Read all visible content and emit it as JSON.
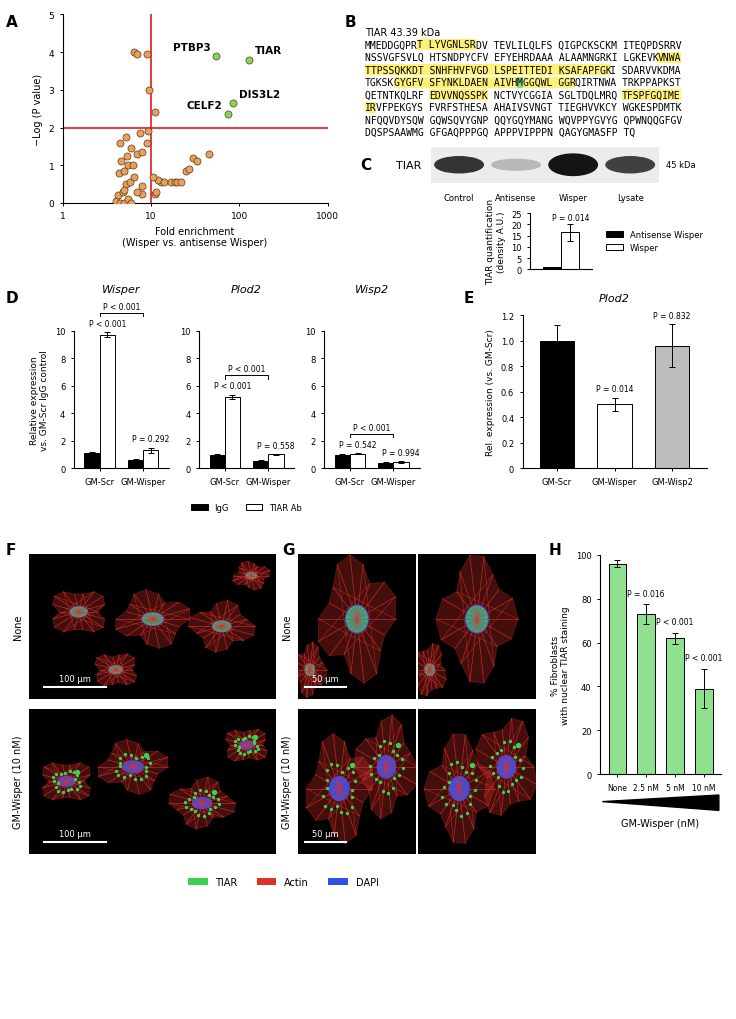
{
  "chart_data": [
    {
      "type": "scatter",
      "xlabel": "Fold enrichment\n(Wisper vs. antisense Wisper)",
      "ylabel": "−Log (P value)",
      "log": "x",
      "xlim": [
        1,
        1000
      ],
      "xticks": [
        1,
        10,
        100,
        1000
      ],
      "ylim": [
        0,
        5
      ],
      "yticks": [
        0,
        1,
        2,
        3,
        4,
        5
      ],
      "reference_lines": {
        "x": 10,
        "y": 2,
        "color": "#e41a1c"
      },
      "series": [
        {
          "color": "#e8a05c",
          "x": [
            4,
            4.5,
            5,
            5.5,
            6,
            4.2,
            4.8,
            5.2,
            5.8,
            6.5,
            4.3,
            5,
            5.5,
            6.2,
            4.6,
            5.3,
            7,
            8,
            6,
            4.5,
            9,
            5.2,
            7.5,
            9.2,
            11,
            11.5,
            13,
            12,
            14,
            17,
            19,
            20,
            22,
            10.5,
            25,
            27,
            30,
            33,
            45,
            11,
            6.5,
            7,
            9,
            9.5,
            5,
            8,
            7,
            8
          ],
          "values": [
            0.05,
            0,
            0,
            0.1,
            0,
            0.2,
            0.3,
            0.5,
            0.55,
            0.7,
            0.8,
            0.85,
            1.0,
            1.0,
            1.1,
            1.25,
            1.3,
            1.35,
            1.45,
            1.6,
            1.6,
            1.75,
            1.85,
            1.9,
            0.25,
            0.3,
            0.55,
            0.6,
            0.55,
            0.55,
            0.55,
            0.55,
            0.55,
            0.7,
            0.85,
            0.9,
            1.2,
            1.1,
            1.3,
            2.4,
            4.0,
            3.95,
            3.95,
            3.0,
            0.35,
            0.25,
            0.3,
            0.45
          ]
        },
        {
          "color": "#7ed957",
          "x": [
            55,
            130,
            85,
            75
          ],
          "values": [
            3.9,
            3.8,
            2.65,
            2.35
          ],
          "labels": [
            "PTBP3",
            "TIAR",
            "DIS3L2",
            "CELF2"
          ]
        }
      ]
    },
    {
      "type": "bar",
      "categories": [
        null
      ],
      "series": [
        {
          "name": "Antisense Wisper",
          "color": "#000000",
          "values": [
            1.0
          ],
          "errors": [
            0.2
          ]
        },
        {
          "name": "Wisper",
          "color": "#ffffff",
          "values": [
            16.5
          ],
          "errors": [
            3.7
          ]
        }
      ],
      "ylabel": "TIAR quantification\n(density A.U.)",
      "ylim": [
        0,
        25
      ],
      "yticks": [
        0,
        5,
        10,
        15,
        20,
        25
      ],
      "annotations": [
        {
          "text": "P = 0.014"
        }
      ],
      "legend": "right",
      "tick_labels": "y"
    },
    {
      "type": "bar",
      "title": "Wisper",
      "categories": [
        "GM-Scr",
        "GM-Wisper"
      ],
      "series": [
        {
          "name": "IgG",
          "color": "#000000",
          "values": [
            1.1,
            0.6
          ],
          "errors": [
            0.1,
            0.05
          ]
        },
        {
          "name": "TIAR Ab",
          "color": "#ffffff",
          "values": [
            9.7,
            1.3
          ],
          "errors": [
            0.2,
            0.2
          ]
        }
      ],
      "ylabel": "Relative expression\nvs. GM-Scr IgG control",
      "ylim": [
        0,
        10
      ],
      "yticks": [
        0,
        2,
        4,
        6,
        8,
        10
      ],
      "annotations": [
        {
          "category": "GM-Scr",
          "text": "P < 0.001"
        },
        {
          "category": "GM-Wisper",
          "text": "P = 0.292"
        }
      ],
      "bracket": {
        "text": "P < 0.001",
        "between": [
          "GM-Scr",
          "GM-Wisper"
        ]
      }
    },
    {
      "type": "bar",
      "title": "Plod2",
      "categories": [
        "GM-Scr",
        "GM-Wisper"
      ],
      "series": [
        {
          "name": "IgG",
          "color": "#000000",
          "values": [
            0.95,
            0.55
          ],
          "errors": [
            0.05,
            0.03
          ]
        },
        {
          "name": "TIAR Ab",
          "color": "#ffffff",
          "values": [
            5.2,
            1.0
          ],
          "errors": [
            0.15,
            0.05
          ]
        }
      ],
      "ylim": [
        0,
        10
      ],
      "yticks": [
        0,
        2,
        4,
        6,
        8,
        10
      ],
      "annotations": [
        {
          "category": "GM-Scr",
          "text": "P < 0.001"
        },
        {
          "category": "GM-Wisper",
          "text": "P = 0.558"
        }
      ],
      "bracket": {
        "text": "P < 0.001",
        "between": [
          "GM-Scr",
          "GM-Wisper"
        ]
      },
      "legend": "bottom"
    },
    {
      "type": "bar",
      "title": "Wisp2",
      "categories": [
        "GM-Scr",
        "GM-Wisper"
      ],
      "series": [
        {
          "name": "IgG",
          "color": "#000000",
          "values": [
            0.95,
            0.4
          ],
          "errors": [
            0.05,
            0.03
          ]
        },
        {
          "name": "TIAR Ab",
          "color": "#ffffff",
          "values": [
            1.05,
            0.45
          ],
          "errors": [
            0.05,
            0.04
          ]
        }
      ],
      "ylim": [
        0,
        10
      ],
      "yticks": [
        0,
        2,
        4,
        6,
        8,
        10
      ],
      "annotations": [
        {
          "category": "GM-Scr",
          "text": "P = 0.542"
        },
        {
          "category": "GM-Wisper",
          "text": "P = 0.994"
        }
      ],
      "bracket": {
        "text": "P < 0.001",
        "between": [
          "GM-Scr",
          "GM-Wisper"
        ]
      }
    },
    {
      "type": "bar",
      "title": "Plod2",
      "categories": [
        "GM-Scr",
        "GM-Wisper",
        "GM-Wisp2"
      ],
      "values": [
        1.0,
        0.5,
        0.96
      ],
      "errors": [
        0.12,
        0.05,
        0.17
      ],
      "colors": [
        "#000000",
        "#ffffff",
        "#bdbdbd"
      ],
      "ylabel": "Rel. expression (vs. GM-Scr)",
      "ylim": [
        0,
        1.2
      ],
      "yticks": [
        0,
        0.2,
        0.4,
        0.6,
        0.8,
        {
          "value": 1,
          "label": "1.0"
        },
        1.2
      ],
      "annotations": [
        {
          "category": "GM-Wisper",
          "text": "P = 0.014"
        },
        {
          "category": "GM-Wisp2",
          "text": "P = 0.832"
        }
      ]
    },
    {
      "type": "bar",
      "categories": [
        "None",
        "2.5 nM",
        "5 nM",
        "10 nM"
      ],
      "values": [
        96,
        73,
        62,
        39
      ],
      "errors": [
        1.5,
        4.5,
        2.5,
        9
      ],
      "color": "#8fe08f",
      "ylabel": "% Fibroblasts\nwith nuclear TIAR staining",
      "xlabel": "GM-Wisper (nM)",
      "ylim": [
        0,
        100
      ],
      "yticks": [
        0,
        20,
        40,
        60,
        80,
        100
      ],
      "annotations": [
        {
          "category": "2.5 nM",
          "text": "P = 0.016"
        },
        {
          "category": "5 nM",
          "text": "P < 0.001"
        },
        {
          "category": "10 nM",
          "text": "P < 0.001"
        }
      ]
    }
  ],
  "panel_letters": [
    "A",
    "B",
    "C",
    "D",
    "E",
    "F",
    "G",
    "H"
  ],
  "sequence": {
    "title": "TIAR 43.39 kDa",
    "rows": [
      [
        {
          "text": "MMEDDGQPR",
          "highlight": null
        },
        {
          "text": "T LYVGNLSR",
          "highlight": "#fff176"
        },
        {
          "text": "DV TEVLILQLFS QIGPCKSCKM ITEQPDSRRV",
          "highlight": null
        }
      ],
      [
        {
          "text": "NSSVGFSVLQ HTSNDPYCFV EFYEHRDAAA ALAAMNGRKI LGKEVK",
          "highlight": null
        },
        {
          "text": "VNWA",
          "highlight": "#fff176"
        }
      ],
      [
        {
          "text": "TTPSSQKKDT SNHFHVFVGD LSPEITTEDI KSAFAPFGK",
          "highlight": "#fff176"
        },
        {
          "text": "I SDARVVKDMA",
          "highlight": null
        }
      ],
      [
        {
          "text": "TGKSK",
          "highlight": null
        },
        {
          "text": "GYGFV SFYNKLDAEN AIVH",
          "highlight": "#fff176"
        },
        {
          "text": "M",
          "highlight": "#7ee07e"
        },
        {
          "text": "GGQWL GGR",
          "highlight": "#fff176"
        },
        {
          "text": "QIRTNWA TRKPPAPKST",
          "highlight": null
        }
      ],
      [
        {
          "text": "QETNTKQLRF ",
          "highlight": null
        },
        {
          "text": "EDVVNQSSPK",
          "highlight": "#fff176"
        },
        {
          "text": " NCTVYCGGIA SGLTDQLMRQ ",
          "highlight": null
        },
        {
          "text": "TFSPFGQIME",
          "highlight": "#fff176"
        }
      ],
      [
        {
          "text": "IR",
          "highlight": "#fff176"
        },
        {
          "text": "VFPEKGYS FVRFSTHESA AHAIVSVNGT TIEGHVVKCY WGKESPDMTK",
          "highlight": null
        }
      ],
      [
        {
          "text": "NFQQVDYSQW GQWSQVYGNP QQYGQYMANG WQVPPYGVYG QPWNQQGFGV",
          "highlight": null
        }
      ],
      [
        {
          "text": "DQSPSAAWMG GFGAQPPPGQ APPPVIPPPN QAGYGMASFP TQ",
          "highlight": null
        }
      ]
    ]
  },
  "blot": {
    "protein": "TIAR",
    "size": "45 kDa",
    "lanes": [
      "Control",
      "Antisense",
      "Wisper",
      "Lysate"
    ]
  },
  "micrographs": [
    {
      "rows": [
        "None",
        "GM-Wisper (10 nM)"
      ],
      "scale_bar": "100 µm"
    },
    {
      "rows": [
        "None",
        "GM-Wisper (10 nM)"
      ],
      "scale_bar": "50 µm"
    }
  ],
  "micrograph_legend": [
    {
      "name": "TIAR",
      "color": "#39d353"
    },
    {
      "name": "Actin",
      "color": "#e0302a"
    },
    {
      "name": "DAPI",
      "color": "#3050e8"
    }
  ]
}
